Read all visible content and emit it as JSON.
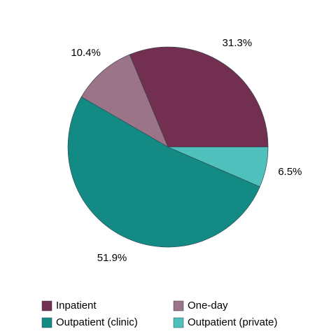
{
  "chart_data": {
    "type": "pie",
    "categories": [
      "Inpatient",
      "One-day",
      "Outpatient (clinic)",
      "Outpatient (private)"
    ],
    "values": [
      31.3,
      10.4,
      51.9,
      6.5
    ],
    "value_labels": [
      "31.3%",
      "10.4%",
      "51.9%",
      "6.5%"
    ],
    "colors": [
      "#722f50",
      "#9b7488",
      "#148a85",
      "#50c0bd"
    ]
  }
}
